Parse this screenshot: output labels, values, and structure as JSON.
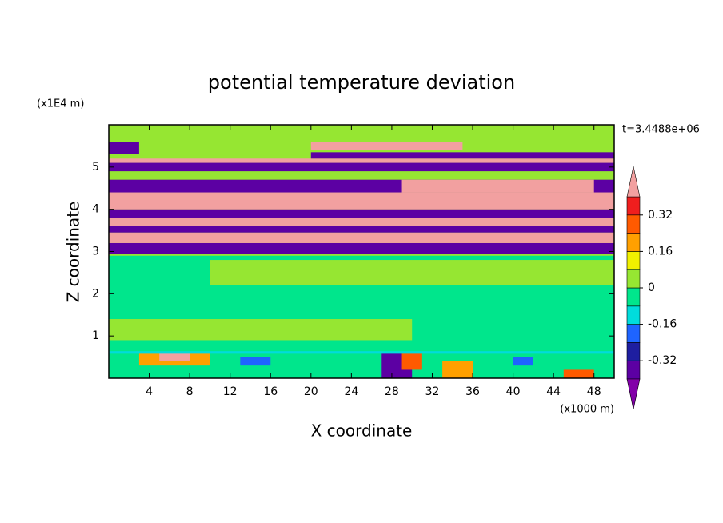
{
  "chart_data": {
    "type": "filled-contour",
    "title": "potential temperature deviation",
    "time_label": "t=3.4488e+06",
    "x_label": "X coordinate",
    "y_label": "Z coordinate",
    "x_unit_label": "(x1000 m)",
    "y_unit_label": "(x1E4 m)",
    "xlim": [
      0,
      50
    ],
    "ylim": [
      0,
      6
    ],
    "xticks": [
      4,
      8,
      12,
      16,
      20,
      24,
      28,
      32,
      36,
      40,
      44,
      48
    ],
    "yticks": [
      1,
      2,
      3,
      4,
      5
    ],
    "levels": [
      -0.4,
      -0.32,
      -0.24,
      -0.16,
      -0.08,
      0,
      0.08,
      0.16,
      0.24,
      0.32,
      0.4
    ],
    "level_colors": [
      "#8200a8",
      "#5c00a3",
      "#1e1ea0",
      "#1e64ff",
      "#00dcdc",
      "#00e68c",
      "#96e632",
      "#f0f000",
      "#ffa000",
      "#ff5a00",
      "#f01e1e",
      "#f2a0a0"
    ],
    "colorbar_ticks": [
      -0.32,
      -0.16,
      0,
      0.16,
      0.32
    ],
    "regions": [
      {
        "x": [
          0,
          50
        ],
        "z": [
          0,
          6
        ],
        "value": 0.04
      },
      {
        "x": [
          0,
          50
        ],
        "z": [
          0,
          2.9
        ],
        "value": -0.04
      },
      {
        "x": [
          10,
          50
        ],
        "z": [
          2.2,
          2.8
        ],
        "value": 0.04
      },
      {
        "x": [
          0,
          30
        ],
        "z": [
          0.9,
          1.4
        ],
        "value": 0.04
      },
      {
        "x": [
          3,
          10
        ],
        "z": [
          0.3,
          0.6
        ],
        "value": 0.2
      },
      {
        "x": [
          5,
          8
        ],
        "z": [
          0.4,
          0.6
        ],
        "value": 0.45
      },
      {
        "x": [
          13,
          16
        ],
        "z": [
          0.3,
          0.5
        ],
        "value": -0.2
      },
      {
        "x": [
          27,
          30
        ],
        "z": [
          0,
          0.6
        ],
        "value": -0.36
      },
      {
        "x": [
          29,
          31
        ],
        "z": [
          0.2,
          0.6
        ],
        "value": 0.3
      },
      {
        "x": [
          33,
          36
        ],
        "z": [
          0,
          0.4
        ],
        "value": 0.2
      },
      {
        "x": [
          40,
          42
        ],
        "z": [
          0.3,
          0.5
        ],
        "value": -0.2
      },
      {
        "x": [
          45,
          48
        ],
        "z": [
          0,
          0.2
        ],
        "value": 0.3
      },
      {
        "x": [
          0,
          50
        ],
        "z": [
          0.58,
          0.64
        ],
        "value": -0.12
      },
      {
        "x": [
          0,
          50
        ],
        "z": [
          2.95,
          3.2
        ],
        "value": -0.36
      },
      {
        "x": [
          0,
          50
        ],
        "z": [
          3.2,
          3.45
        ],
        "value": 0.45
      },
      {
        "x": [
          0,
          50
        ],
        "z": [
          3.45,
          3.6
        ],
        "value": -0.36
      },
      {
        "x": [
          0,
          50
        ],
        "z": [
          3.6,
          3.8
        ],
        "value": 0.45
      },
      {
        "x": [
          0,
          50
        ],
        "z": [
          3.8,
          4.0
        ],
        "value": -0.36
      },
      {
        "x": [
          0,
          50
        ],
        "z": [
          4.0,
          4.4
        ],
        "value": 0.45
      },
      {
        "x": [
          0,
          50
        ],
        "z": [
          4.4,
          4.7
        ],
        "value": -0.36
      },
      {
        "x": [
          29,
          48
        ],
        "z": [
          4.4,
          4.7
        ],
        "value": 0.45
      },
      {
        "x": [
          0,
          50
        ],
        "z": [
          4.9,
          5.1
        ],
        "value": -0.36
      },
      {
        "x": [
          0,
          50
        ],
        "z": [
          5.1,
          5.2
        ],
        "value": 0.45
      },
      {
        "x": [
          20,
          50
        ],
        "z": [
          5.2,
          5.35
        ],
        "value": -0.36
      },
      {
        "x": [
          0,
          3
        ],
        "z": [
          5.3,
          5.6
        ],
        "value": -0.36
      },
      {
        "x": [
          20,
          35
        ],
        "z": [
          5.4,
          5.6
        ],
        "value": 0.45
      }
    ]
  }
}
